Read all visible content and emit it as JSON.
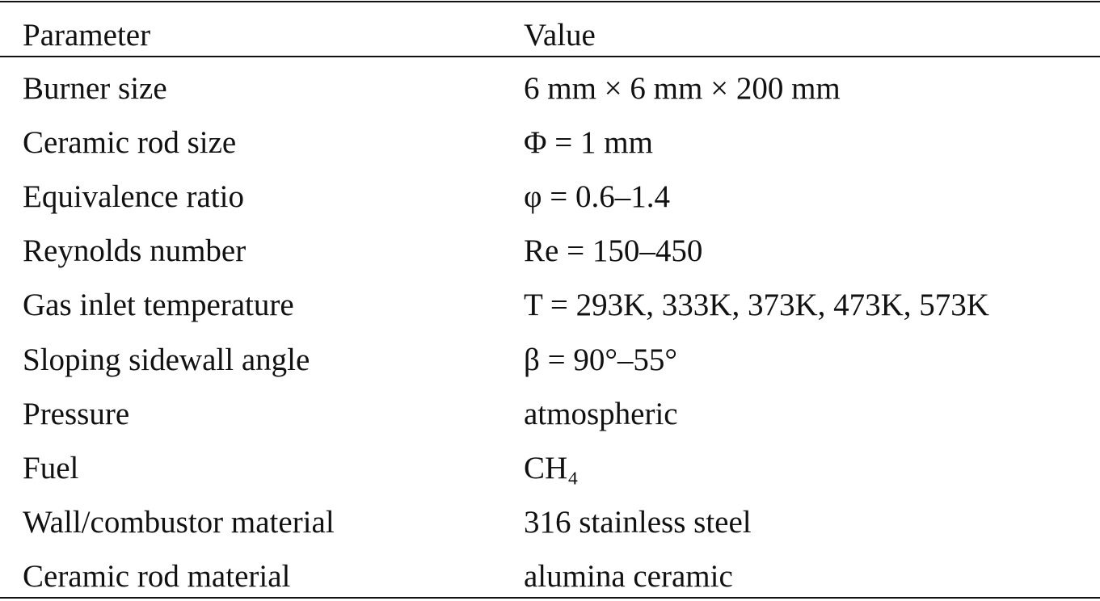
{
  "table": {
    "header": [
      "Parameter",
      "Value"
    ],
    "rows": [
      [
        "Burner size",
        "6 mm × 6 mm × 200 mm"
      ],
      [
        "Ceramic rod size",
        "Φ = 1 mm"
      ],
      [
        "Equivalence ratio",
        "φ = 0.6–1.4"
      ],
      [
        "Reynolds number",
        "Re = 150–450"
      ],
      [
        "Gas inlet temperature",
        "T = 293K, 333K, 373K, 473K, 573K"
      ],
      [
        "Sloping sidewall angle",
        "β = 90°–55°"
      ],
      [
        "Pressure",
        "atmospheric"
      ],
      [
        "Fuel",
        "CH₄"
      ],
      [
        "Wall/combustor material",
        "316 stainless steel"
      ],
      [
        "Ceramic rod material",
        "alumina ceramic"
      ]
    ]
  }
}
